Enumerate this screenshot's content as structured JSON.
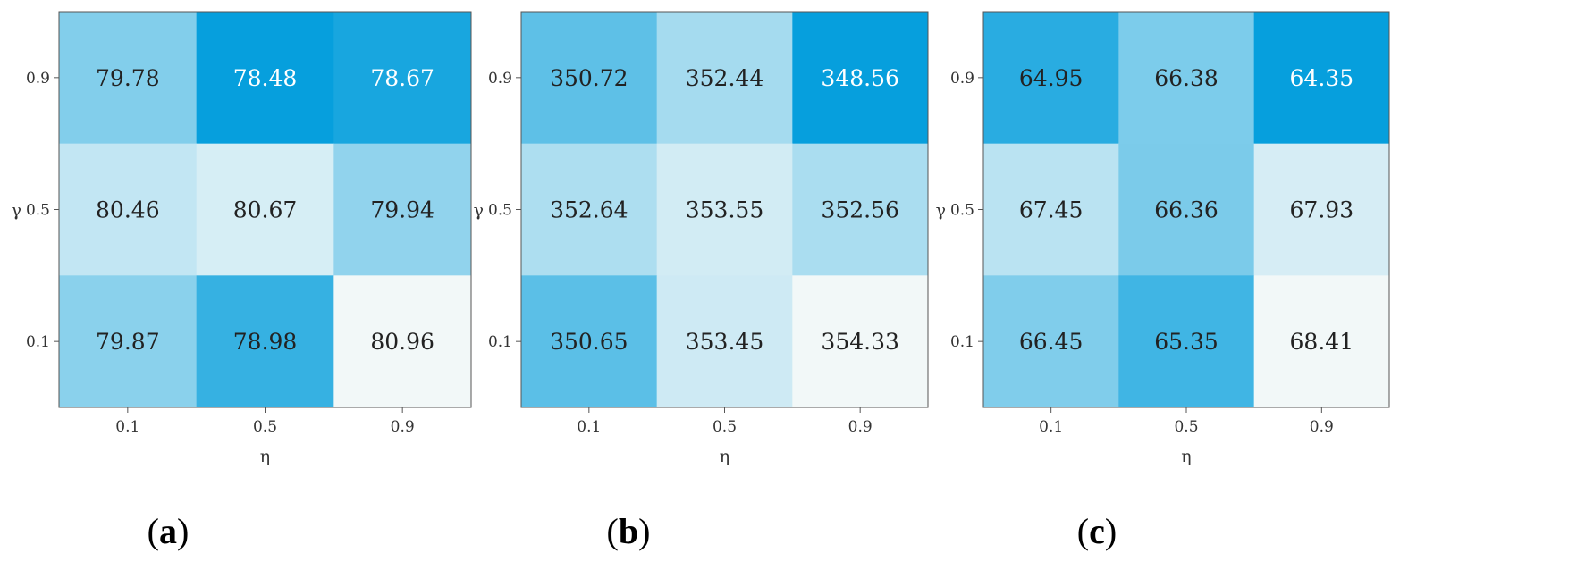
{
  "chart_data": [
    {
      "type": "heatmap",
      "panel_label": "a",
      "xlabel": "η",
      "ylabel": "γ",
      "x": [
        "0.1",
        "0.5",
        "0.9"
      ],
      "y": [
        "0.9",
        "0.5",
        "0.1"
      ],
      "values": [
        [
          79.78,
          78.48,
          78.67
        ],
        [
          80.46,
          80.67,
          79.94
        ],
        [
          79.87,
          78.98,
          80.96
        ]
      ],
      "value_labels": [
        [
          "79.78",
          "78.48",
          "78.67"
        ],
        [
          "80.46",
          "80.67",
          "79.94"
        ],
        [
          "79.87",
          "78.98",
          "80.96"
        ]
      ]
    },
    {
      "type": "heatmap",
      "panel_label": "b",
      "xlabel": "η",
      "ylabel": "γ",
      "x": [
        "0.1",
        "0.5",
        "0.9"
      ],
      "y": [
        "0.9",
        "0.5",
        "0.1"
      ],
      "values": [
        [
          350.72,
          352.44,
          348.56
        ],
        [
          352.64,
          353.55,
          352.56
        ],
        [
          350.65,
          353.45,
          354.33
        ]
      ],
      "value_labels": [
        [
          "350.72",
          "352.44",
          "348.56"
        ],
        [
          "352.64",
          "353.55",
          "352.56"
        ],
        [
          "350.65",
          "353.45",
          "354.33"
        ]
      ]
    },
    {
      "type": "heatmap",
      "panel_label": "c",
      "xlabel": "η",
      "ylabel": "γ",
      "x": [
        "0.1",
        "0.5",
        "0.9"
      ],
      "y": [
        "0.9",
        "0.5",
        "0.1"
      ],
      "values": [
        [
          64.95,
          66.38,
          64.35
        ],
        [
          67.45,
          66.36,
          67.93
        ],
        [
          66.45,
          65.35,
          68.41
        ]
      ],
      "value_labels": [
        [
          "64.95",
          "66.38",
          "64.35"
        ],
        [
          "67.45",
          "66.36",
          "67.93"
        ],
        [
          "66.45",
          "65.35",
          "68.41"
        ]
      ]
    }
  ],
  "colors": {
    "colormap_low": "#f2f8f8",
    "colormap_high": "#069fdd",
    "axis": "#555555"
  }
}
